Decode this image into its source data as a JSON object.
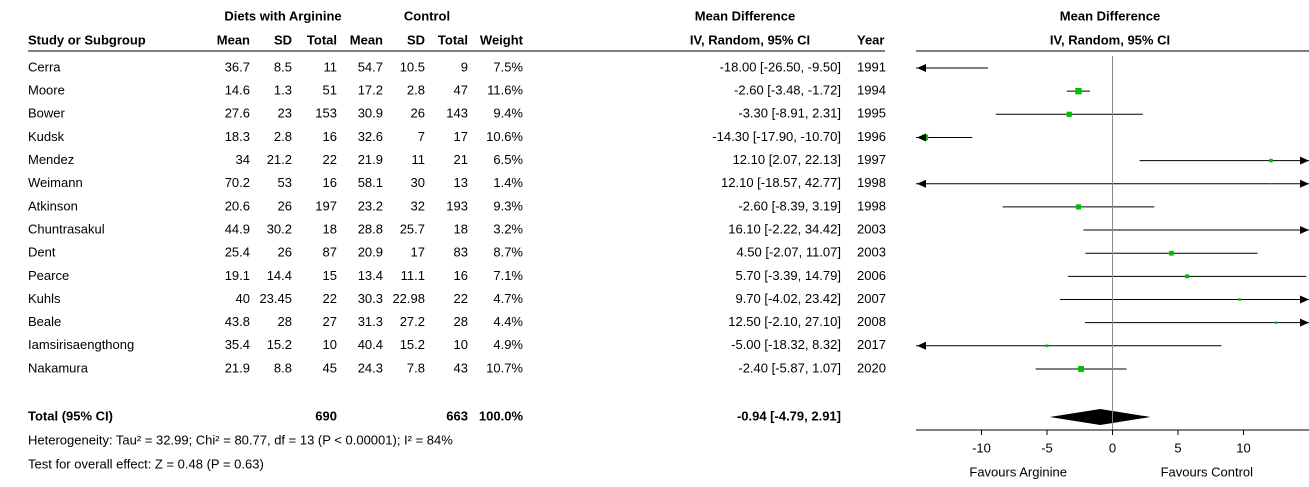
{
  "chart_data": {
    "type": "forest",
    "group_headers": [
      "Diets with Arginine",
      "Control",
      "Mean Difference",
      "Mean Difference"
    ],
    "columns": [
      "Study or Subgroup",
      "Mean",
      "SD",
      "Total",
      "Mean",
      "SD",
      "Total",
      "Weight",
      "IV, Random, 95% CI",
      "Year"
    ],
    "plot_header": "IV, Random, 95% CI",
    "rows": [
      {
        "study": "Cerra",
        "arg_mean": 36.7,
        "arg_sd": 8.5,
        "arg_total": 11,
        "ctl_mean": 54.7,
        "ctl_sd": 10.5,
        "ctl_total": 9,
        "weight": 7.5,
        "weight_label": "7.5%",
        "md": -18.0,
        "lo": -26.5,
        "hi": -9.5,
        "md_label": "-18.00 [-26.50, -9.50]",
        "year": 1991
      },
      {
        "study": "Moore",
        "arg_mean": 14.6,
        "arg_sd": 1.3,
        "arg_total": 51,
        "ctl_mean": 17.2,
        "ctl_sd": 2.8,
        "ctl_total": 47,
        "weight": 11.6,
        "weight_label": "11.6%",
        "md": -2.6,
        "lo": -3.48,
        "hi": -1.72,
        "md_label": "-2.60 [-3.48, -1.72]",
        "year": 1994
      },
      {
        "study": "Bower",
        "arg_mean": 27.6,
        "arg_sd": 23,
        "arg_total": 153,
        "ctl_mean": 30.9,
        "ctl_sd": 26,
        "ctl_total": 143,
        "weight": 9.4,
        "weight_label": "9.4%",
        "md": -3.3,
        "lo": -8.91,
        "hi": 2.31,
        "md_label": "-3.30 [-8.91, 2.31]",
        "year": 1995
      },
      {
        "study": "Kudsk",
        "arg_mean": 18.3,
        "arg_sd": 2.8,
        "arg_total": 16,
        "ctl_mean": 32.6,
        "ctl_sd": 7,
        "ctl_total": 17,
        "weight": 10.6,
        "weight_label": "10.6%",
        "md": -14.3,
        "lo": -17.9,
        "hi": -10.7,
        "md_label": "-14.30 [-17.90, -10.70]",
        "year": 1996
      },
      {
        "study": "Mendez",
        "arg_mean": 34,
        "arg_sd": 21.2,
        "arg_total": 22,
        "ctl_mean": 21.9,
        "ctl_sd": 11,
        "ctl_total": 21,
        "weight": 6.5,
        "weight_label": "6.5%",
        "md": 12.1,
        "lo": 2.07,
        "hi": 22.13,
        "md_label": "12.10 [2.07, 22.13]",
        "year": 1997
      },
      {
        "study": "Weimann",
        "arg_mean": 70.2,
        "arg_sd": 53,
        "arg_total": 16,
        "ctl_mean": 58.1,
        "ctl_sd": 30,
        "ctl_total": 13,
        "weight": 1.4,
        "weight_label": "1.4%",
        "md": 12.1,
        "lo": -18.57,
        "hi": 42.77,
        "md_label": "12.10 [-18.57, 42.77]",
        "year": 1998
      },
      {
        "study": "Atkinson",
        "arg_mean": 20.6,
        "arg_sd": 26,
        "arg_total": 197,
        "ctl_mean": 23.2,
        "ctl_sd": 32,
        "ctl_total": 193,
        "weight": 9.3,
        "weight_label": "9.3%",
        "md": -2.6,
        "lo": -8.39,
        "hi": 3.19,
        "md_label": "-2.60 [-8.39, 3.19]",
        "year": 1998
      },
      {
        "study": "Chuntrasakul",
        "arg_mean": 44.9,
        "arg_sd": 30.2,
        "arg_total": 18,
        "ctl_mean": 28.8,
        "ctl_sd": 25.7,
        "ctl_total": 18,
        "weight": 3.2,
        "weight_label": "3.2%",
        "md": 16.1,
        "lo": -2.22,
        "hi": 34.42,
        "md_label": "16.10 [-2.22, 34.42]",
        "year": 2003
      },
      {
        "study": "Dent",
        "arg_mean": 25.4,
        "arg_sd": 26,
        "arg_total": 87,
        "ctl_mean": 20.9,
        "ctl_sd": 17,
        "ctl_total": 83,
        "weight": 8.7,
        "weight_label": "8.7%",
        "md": 4.5,
        "lo": -2.07,
        "hi": 11.07,
        "md_label": "4.50 [-2.07, 11.07]",
        "year": 2003
      },
      {
        "study": "Pearce",
        "arg_mean": 19.1,
        "arg_sd": 14.4,
        "arg_total": 15,
        "ctl_mean": 13.4,
        "ctl_sd": 11.1,
        "ctl_total": 16,
        "weight": 7.1,
        "weight_label": "7.1%",
        "md": 5.7,
        "lo": -3.39,
        "hi": 14.79,
        "md_label": "5.70 [-3.39, 14.79]",
        "year": 2006
      },
      {
        "study": "Kuhls",
        "arg_mean": 40,
        "arg_sd": 23.45,
        "arg_total": 22,
        "ctl_mean": 30.3,
        "ctl_sd": 22.98,
        "ctl_total": 22,
        "weight": 4.7,
        "weight_label": "4.7%",
        "md": 9.7,
        "lo": -4.02,
        "hi": 23.42,
        "md_label": "9.70 [-4.02, 23.42]",
        "year": 2007
      },
      {
        "study": "Beale",
        "arg_mean": 43.8,
        "arg_sd": 28,
        "arg_total": 27,
        "ctl_mean": 31.3,
        "ctl_sd": 27.2,
        "ctl_total": 28,
        "weight": 4.4,
        "weight_label": "4.4%",
        "md": 12.5,
        "lo": -2.1,
        "hi": 27.1,
        "md_label": "12.50 [-2.10, 27.10]",
        "year": 2008
      },
      {
        "study": "Iamsirisaengthong",
        "arg_mean": 35.4,
        "arg_sd": 15.2,
        "arg_total": 10,
        "ctl_mean": 40.4,
        "ctl_sd": 15.2,
        "ctl_total": 10,
        "weight": 4.9,
        "weight_label": "4.9%",
        "md": -5.0,
        "lo": -18.32,
        "hi": 8.32,
        "md_label": "-5.00 [-18.32, 8.32]",
        "year": 2017
      },
      {
        "study": "Nakamura",
        "arg_mean": 21.9,
        "arg_sd": 8.8,
        "arg_total": 45,
        "ctl_mean": 24.3,
        "ctl_sd": 7.8,
        "ctl_total": 43,
        "weight": 10.7,
        "weight_label": "10.7%",
        "md": -2.4,
        "lo": -5.87,
        "hi": 1.07,
        "md_label": "-2.40 [-5.87, 1.07]",
        "year": 2020
      }
    ],
    "total": {
      "study": "Total (95% CI)",
      "arg_total": 690,
      "ctl_total": 663,
      "weight_label": "100.0%",
      "md": -0.94,
      "lo": -4.79,
      "hi": 2.91,
      "md_label": "-0.94 [-4.79, 2.91]"
    },
    "heterogeneity": "Heterogeneity: Tau² = 32.99; Chi² = 80.77, df = 13 (P < 0.00001); I² = 84%",
    "overall_effect": "Test for overall effect: Z = 0.48 (P = 0.63)",
    "favours": [
      "Favours Arginine",
      "Favours Control"
    ],
    "xlim": [
      -15,
      15
    ],
    "xticks": [
      -10,
      -5,
      0,
      5,
      10
    ],
    "color": "#00c000"
  }
}
